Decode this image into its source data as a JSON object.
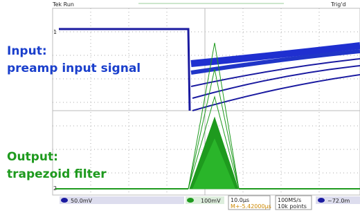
{
  "status": {
    "run": "Tek Run",
    "trigger": "Trig'd"
  },
  "annotations": {
    "input_title": "Input:",
    "input_desc": "preamp input signal",
    "output_title": "Output:",
    "output_desc": "trapezoid filter"
  },
  "channels": {
    "ch1_marker": "1",
    "ch2_marker": "2"
  },
  "readout": {
    "ch1_scale": "50.0mV",
    "ch2_scale": "100mV",
    "timebase": "10.0µs",
    "delay": "M+-5.42000µs",
    "sample_rate": "100MS/s",
    "record": "10k points",
    "trigger_level": "~72.0m"
  }
}
